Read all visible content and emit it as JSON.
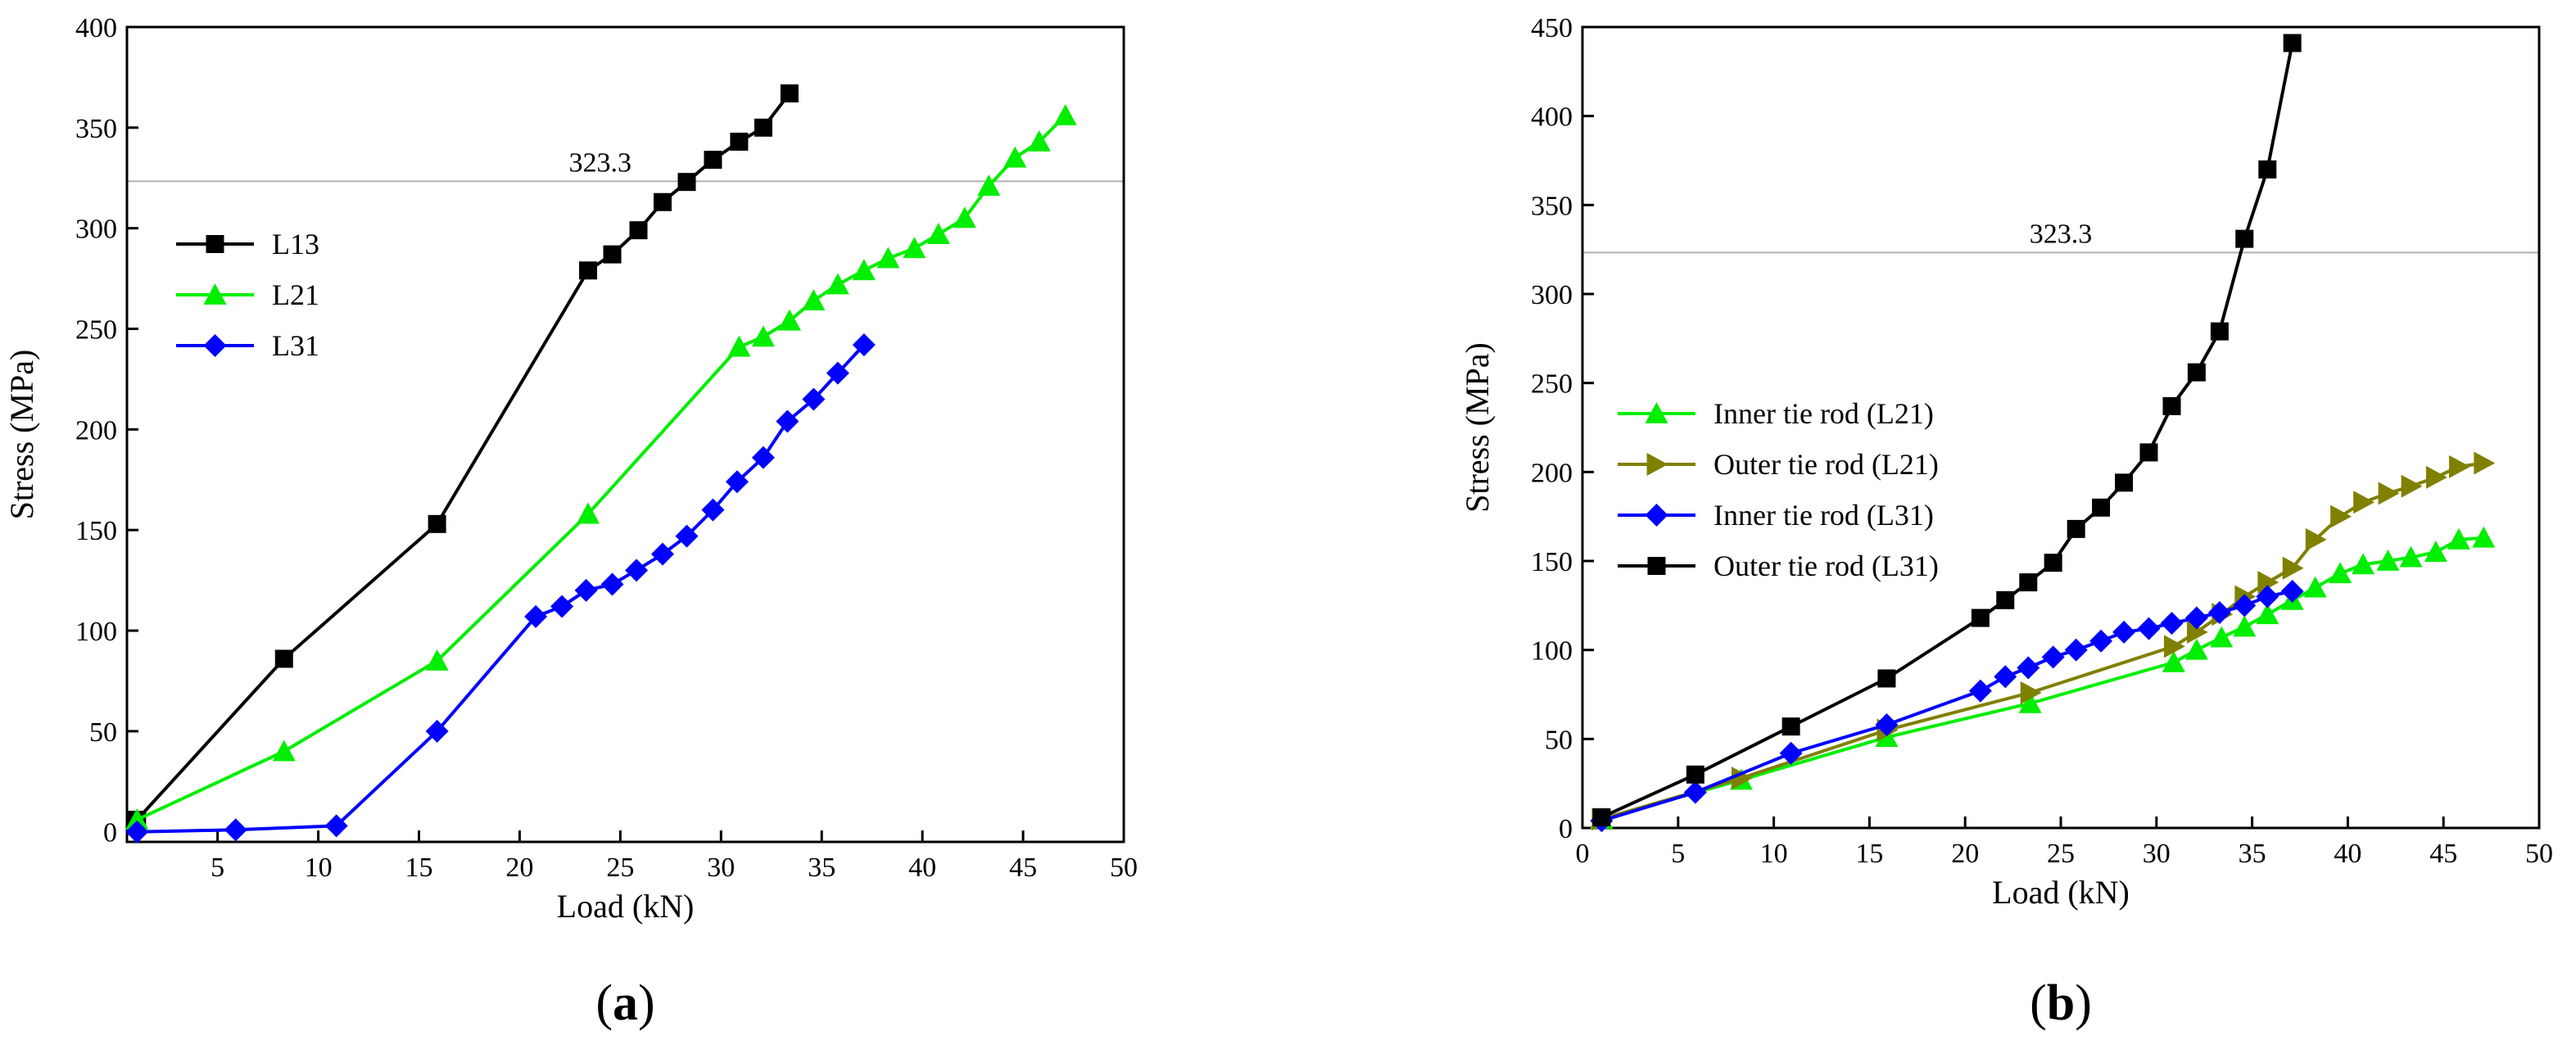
{
  "chart_data": [
    {
      "id": "a",
      "type": "line",
      "panel_label": "(a)",
      "panel_letter": "a",
      "xlabel": "Load (kN)",
      "ylabel": "Stress (MPa)",
      "xlim": [
        0.5,
        50
      ],
      "ylim": [
        -5,
        400
      ],
      "xticks": [
        5,
        10,
        15,
        20,
        25,
        30,
        35,
        40,
        45,
        50
      ],
      "yticks": [
        0,
        50,
        100,
        150,
        200,
        250,
        300,
        350,
        400
      ],
      "reference_line": {
        "y": 323.3,
        "label": "323.3",
        "label_x": 24
      },
      "legend_position": "upper-left",
      "series": [
        {
          "name": "L13",
          "color": "#000000",
          "marker": "square",
          "x": [
            1.0,
            8.3,
            15.9,
            23.4,
            24.6,
            25.9,
            27.1,
            28.3,
            29.6,
            30.9,
            32.1,
            33.4
          ],
          "y": [
            6,
            86,
            153,
            279,
            287,
            299,
            313,
            323,
            334,
            343,
            350,
            367
          ]
        },
        {
          "name": "L21",
          "color": "#00ee00",
          "marker": "triangle-up",
          "x": [
            1.0,
            8.3,
            15.9,
            23.4,
            30.9,
            32.1,
            33.4,
            34.6,
            35.8,
            37.1,
            38.3,
            39.6,
            40.8,
            42.1,
            43.3,
            44.6,
            45.8,
            47.1
          ],
          "y": [
            6,
            40,
            85,
            158,
            241,
            246,
            254,
            264,
            272,
            279,
            285,
            290,
            297,
            305,
            321,
            335,
            343,
            356
          ]
        },
        {
          "name": "L31",
          "color": "#0000ff",
          "marker": "diamond",
          "x": [
            1.0,
            5.9,
            10.9,
            15.9,
            20.8,
            22.1,
            23.3,
            24.6,
            25.8,
            27.1,
            28.3,
            29.6,
            30.8,
            32.1,
            33.3,
            34.6,
            35.8,
            37.1
          ],
          "y": [
            0,
            1,
            3,
            50,
            107,
            112,
            120,
            123,
            130,
            138,
            147,
            160,
            174,
            186,
            204,
            215,
            228,
            242
          ]
        }
      ]
    },
    {
      "id": "b",
      "type": "line",
      "panel_label": "(b)",
      "panel_letter": "b",
      "xlabel": "Load (kN)",
      "ylabel": "Stress (MPa)",
      "xlim": [
        0,
        50
      ],
      "ylim": [
        0,
        450
      ],
      "xticks": [
        0,
        5,
        10,
        15,
        20,
        25,
        30,
        35,
        40,
        45,
        50
      ],
      "yticks": [
        0,
        50,
        100,
        150,
        200,
        250,
        300,
        350,
        400,
        450
      ],
      "reference_line": {
        "y": 323.3,
        "label": "323.3",
        "label_x": 25
      },
      "legend_position": "center-left",
      "series": [
        {
          "name": "Inner tie rod (L21)",
          "color": "#00ee00",
          "marker": "triangle-up",
          "x": [
            1.0,
            8.3,
            15.9,
            23.4,
            30.9,
            32.1,
            33.4,
            34.6,
            35.8,
            37.1,
            38.3,
            39.6,
            40.8,
            42.1,
            43.3,
            44.6,
            45.8,
            47.1
          ],
          "y": [
            5,
            27,
            51,
            70,
            93,
            100,
            107,
            113,
            120,
            128,
            135,
            143,
            148,
            150,
            152,
            155,
            162,
            163
          ]
        },
        {
          "name": "Outer tie rod (L21)",
          "color": "#808000",
          "marker": "triangle-right",
          "x": [
            1.0,
            8.3,
            15.9,
            23.4,
            30.9,
            32.1,
            33.4,
            34.6,
            35.8,
            37.1,
            38.3,
            39.6,
            40.8,
            42.1,
            43.3,
            44.6,
            45.8,
            47.1
          ],
          "y": [
            5,
            28,
            55,
            76,
            102,
            110,
            120,
            130,
            138,
            146,
            162,
            175,
            183,
            188,
            192,
            197,
            203,
            205
          ]
        },
        {
          "name": "Inner tie rod (L31)",
          "color": "#0000ff",
          "marker": "diamond",
          "x": [
            1.0,
            5.9,
            10.9,
            15.9,
            20.8,
            22.1,
            23.3,
            24.6,
            25.8,
            27.1,
            28.3,
            29.6,
            30.8,
            32.1,
            33.3,
            34.6,
            35.8,
            37.1
          ],
          "y": [
            4,
            20,
            42,
            58,
            77,
            85,
            90,
            96,
            100,
            105,
            110,
            112,
            115,
            118,
            121,
            125,
            130,
            133
          ]
        },
        {
          "name": "Outer tie rod (L31)",
          "color": "#000000",
          "marker": "square",
          "x": [
            1.0,
            5.9,
            10.9,
            15.9,
            20.8,
            22.1,
            23.3,
            24.6,
            25.8,
            27.1,
            28.3,
            29.6,
            30.8,
            32.1,
            33.3,
            34.6,
            35.8,
            37.1
          ],
          "y": [
            6,
            30,
            57,
            84,
            118,
            128,
            138,
            149,
            168,
            180,
            194,
            211,
            237,
            256,
            279,
            331,
            370,
            441
          ]
        }
      ]
    }
  ]
}
